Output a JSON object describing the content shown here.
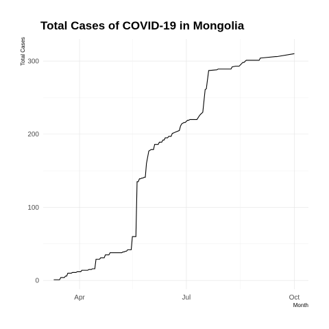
{
  "chart_data": {
    "type": "line",
    "title": "Total Cases of COVID-19 in Mongolia",
    "xlabel": "Month",
    "ylabel": "Total Cases",
    "x_ticks": [
      "Apr",
      "Jul",
      "Oct"
    ],
    "y_ticks": [
      0,
      100,
      200,
      300
    ],
    "ylim": [
      -12,
      330
    ],
    "xlim": [
      "2020-03-01",
      "2020-10-13"
    ],
    "grid": true,
    "legend": "none",
    "color": "#000000",
    "series": [
      {
        "x": [
          "2020-03-10",
          "2020-03-15",
          "2020-03-16",
          "2020-03-19",
          "2020-03-20",
          "2020-03-21",
          "2020-03-22",
          "2020-03-25",
          "2020-03-26",
          "2020-03-29",
          "2020-03-30",
          "2020-04-02",
          "2020-04-03",
          "2020-04-08",
          "2020-04-09",
          "2020-04-11",
          "2020-04-12",
          "2020-04-14",
          "2020-04-15",
          "2020-04-18",
          "2020-04-19",
          "2020-04-22",
          "2020-04-23",
          "2020-04-26",
          "2020-04-27",
          "2020-05-07",
          "2020-05-08",
          "2020-05-09",
          "2020-05-10",
          "2020-05-11",
          "2020-05-12",
          "2020-05-15",
          "2020-05-16",
          "2020-05-19",
          "2020-05-20",
          "2020-05-21",
          "2020-05-22",
          "2020-05-23",
          "2020-05-24",
          "2020-05-25",
          "2020-05-26",
          "2020-05-27",
          "2020-05-28",
          "2020-05-30",
          "2020-06-01",
          "2020-06-03",
          "2020-06-04",
          "2020-06-07",
          "2020-06-08",
          "2020-06-10",
          "2020-06-11",
          "2020-06-12",
          "2020-06-13",
          "2020-06-15",
          "2020-06-16",
          "2020-06-18",
          "2020-06-19",
          "2020-06-25",
          "2020-06-26",
          "2020-06-27",
          "2020-06-29",
          "2020-06-30",
          "2020-07-02",
          "2020-07-03",
          "2020-07-04",
          "2020-07-05",
          "2020-07-06",
          "2020-07-08",
          "2020-07-10",
          "2020-07-12",
          "2020-07-13",
          "2020-07-15",
          "2020-07-17",
          "2020-07-18",
          "2020-07-20",
          "2020-07-27",
          "2020-07-28",
          "2020-08-08",
          "2020-08-09",
          "2020-08-12",
          "2020-08-13",
          "2020-08-15",
          "2020-08-18",
          "2020-08-19",
          "2020-08-21",
          "2020-09-01",
          "2020-09-02",
          "2020-09-15",
          "2020-09-16",
          "2020-10-01"
        ],
        "y": [
          1,
          1,
          4,
          4,
          6,
          6,
          10,
          10,
          11,
          11,
          12,
          12,
          14,
          14,
          15,
          15,
          16,
          16,
          29,
          29,
          31,
          31,
          35,
          35,
          38,
          38,
          39,
          39,
          40,
          40,
          42,
          42,
          60,
          60,
          135,
          135,
          139,
          139,
          140,
          140,
          141,
          141,
          160,
          177,
          179,
          179,
          186,
          186,
          189,
          189,
          192,
          192,
          195,
          195,
          197,
          197,
          201,
          205,
          211,
          214,
          216,
          216,
          219,
          219,
          220,
          220,
          220,
          220,
          220,
          225,
          227,
          230,
          261,
          262,
          287,
          288,
          289,
          289,
          292,
          293,
          293,
          293,
          298,
          298,
          301,
          301,
          304,
          306,
          306,
          310
        ]
      }
    ]
  }
}
